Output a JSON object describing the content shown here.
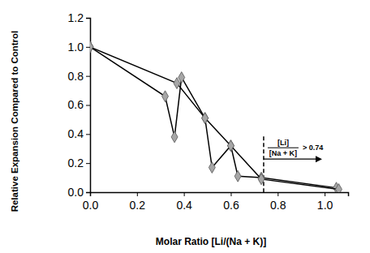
{
  "chart_data": {
    "type": "line",
    "x_label": "Molar Ratio [Li/(Na + K)]",
    "y_label": "Relative Expansion Compared to Control",
    "series": [
      {
        "color": "#000000",
        "marker": "diamond",
        "x": [
          0.0,
          0.32,
          0.36,
          0.39,
          0.49,
          0.52,
          0.6,
          0.63,
          0.73,
          1.05
        ],
        "values": [
          1.0,
          0.66,
          0.38,
          0.79,
          0.51,
          0.17,
          0.32,
          0.11,
          0.1,
          0.03
        ]
      },
      {
        "color": "#000000",
        "marker": "diamond",
        "x": [
          0.0,
          0.37,
          0.49,
          0.6,
          0.73,
          1.06
        ],
        "values": [
          1.0,
          0.75,
          0.51,
          0.32,
          0.09,
          0.02
        ]
      }
    ],
    "xlim": [
      0,
      1.1
    ],
    "xticks": [
      {
        "value": 0,
        "label": "0.0"
      },
      {
        "value": 0.2,
        "label": "0.2"
      },
      {
        "value": 0.4,
        "label": "0.4"
      },
      {
        "value": 0.6,
        "label": "0.6"
      },
      {
        "value": 0.8,
        "label": "0.8"
      },
      {
        "value": 1.0,
        "label": "1.0"
      }
    ],
    "ylim": [
      0,
      1.2
    ],
    "yticks": [
      {
        "value": 0,
        "label": "0.0"
      },
      {
        "value": 0.2,
        "label": "0.2"
      },
      {
        "value": 0.4,
        "label": "0.4"
      },
      {
        "value": 0.6,
        "label": "0.6"
      },
      {
        "value": 0.8,
        "label": "0.8"
      },
      {
        "value": 1.0,
        "label": "1.0"
      },
      {
        "value": 1.2,
        "label": "1.2"
      }
    ],
    "grid": false,
    "annotations": [
      {
        "x": 0.74,
        "numerator": "[Li]",
        "denominator": "[Na + K]",
        "text": "> 0.74"
      }
    ]
  }
}
